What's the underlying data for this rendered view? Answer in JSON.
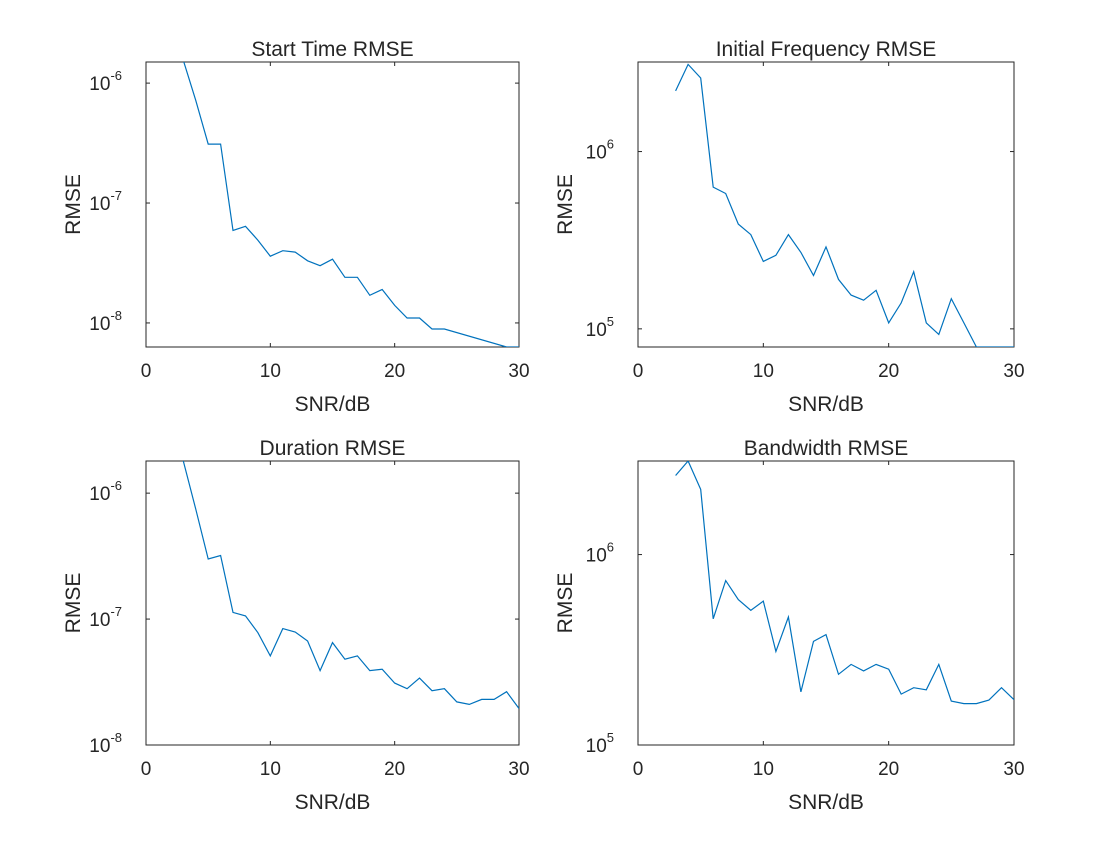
{
  "chart_data": [
    {
      "type": "line",
      "title": "Start Time RMSE",
      "xlabel": "SNR/dB",
      "ylabel": "RMSE",
      "xlim": [
        0,
        30
      ],
      "ylim": [
        6.3e-09,
        1.5e-06
      ],
      "yscale": "log",
      "grid": false,
      "x_ticks": [
        0,
        10,
        20,
        30
      ],
      "y_tick_exponents": [
        -8,
        -7,
        -6
      ],
      "color": "#0072BD",
      "series": [
        {
          "x": [
            3,
            4,
            5,
            6,
            7,
            8,
            9,
            10,
            11,
            12,
            13,
            14,
            15,
            16,
            17,
            18,
            19,
            20,
            21,
            22,
            23,
            24,
            29,
            30
          ],
          "y": [
            1.55e-06,
            7.2e-07,
            3.1e-07,
            3.1e-07,
            5.9e-08,
            6.4e-08,
            4.9e-08,
            3.6e-08,
            4e-08,
            3.9e-08,
            3.3e-08,
            3e-08,
            3.4e-08,
            2.4e-08,
            2.4e-08,
            1.7e-08,
            1.9e-08,
            1.4e-08,
            1.1e-08,
            1.1e-08,
            8.9e-09,
            8.9e-09,
            6.3e-09,
            6.3e-09
          ]
        }
      ]
    },
    {
      "type": "line",
      "title": "Initial Frequency RMSE",
      "xlabel": "SNR/dB",
      "ylabel": "RMSE",
      "xlim": [
        0,
        30
      ],
      "ylim": [
        79000,
        3200000
      ],
      "yscale": "log",
      "grid": false,
      "x_ticks": [
        0,
        10,
        20,
        30
      ],
      "y_tick_exponents": [
        5,
        6
      ],
      "color": "#0072BD",
      "series": [
        {
          "x": [
            3,
            4,
            5,
            6,
            7,
            8,
            9,
            10,
            11,
            12,
            13,
            14,
            15,
            16,
            17,
            18,
            19,
            20,
            21,
            22,
            23,
            24,
            25,
            26,
            27,
            28,
            29,
            30
          ],
          "y": [
            2200000,
            3100000,
            2600000,
            630000,
            580000,
            390000,
            340000,
            240000,
            260000,
            340000,
            270000,
            200000,
            290000,
            190000,
            155000,
            145000,
            165000,
            108000,
            140000,
            210000,
            108000,
            93000,
            148000,
            108000,
            79000,
            79000,
            79000,
            79000
          ]
        }
      ]
    },
    {
      "type": "line",
      "title": "Duration RMSE",
      "xlabel": "SNR/dB",
      "ylabel": "RMSE",
      "xlim": [
        0,
        30
      ],
      "ylim": [
        1e-08,
        1.8e-06
      ],
      "yscale": "log",
      "grid": false,
      "x_ticks": [
        0,
        10,
        20,
        30
      ],
      "y_tick_exponents": [
        -8,
        -7,
        -6
      ],
      "color": "#0072BD",
      "series": [
        {
          "x": [
            3,
            4,
            5,
            6,
            7,
            8,
            9,
            10,
            11,
            12,
            13,
            14,
            15,
            16,
            17,
            18,
            19,
            20,
            21,
            22,
            23,
            24,
            25,
            26,
            27,
            28,
            29,
            30
          ],
          "y": [
            1.8e-06,
            7.5e-07,
            3e-07,
            3.2e-07,
            1.13e-07,
            1.06e-07,
            7.8e-08,
            5.1e-08,
            8.4e-08,
            7.9e-08,
            6.7e-08,
            3.9e-08,
            6.5e-08,
            4.8e-08,
            5.1e-08,
            3.9e-08,
            4e-08,
            3.1e-08,
            2.8e-08,
            3.4e-08,
            2.7e-08,
            2.8e-08,
            2.2e-08,
            2.1e-08,
            2.3e-08,
            2.3e-08,
            2.65e-08,
            1.95e-08
          ]
        }
      ]
    },
    {
      "type": "line",
      "title": "Bandwidth RMSE",
      "xlabel": "SNR/dB",
      "ylabel": "RMSE",
      "xlim": [
        0,
        30
      ],
      "ylim": [
        100000,
        3100000
      ],
      "yscale": "log",
      "grid": false,
      "x_ticks": [
        0,
        10,
        20,
        30
      ],
      "y_tick_exponents": [
        5,
        6
      ],
      "color": "#0072BD",
      "series": [
        {
          "x": [
            3,
            4,
            5,
            6,
            7,
            8,
            9,
            10,
            11,
            12,
            13,
            14,
            15,
            16,
            17,
            18,
            19,
            20,
            21,
            22,
            23,
            24,
            25,
            26,
            27,
            28,
            29,
            30
          ],
          "y": [
            2600000,
            3100000,
            2200000,
            460000,
            730000,
            580000,
            510000,
            570000,
            310000,
            470000,
            190000,
            350000,
            380000,
            235000,
            265000,
            245000,
            265000,
            250000,
            185000,
            200000,
            195000,
            265000,
            170000,
            165000,
            165000,
            172000,
            200000,
            173000
          ]
        }
      ]
    }
  ]
}
